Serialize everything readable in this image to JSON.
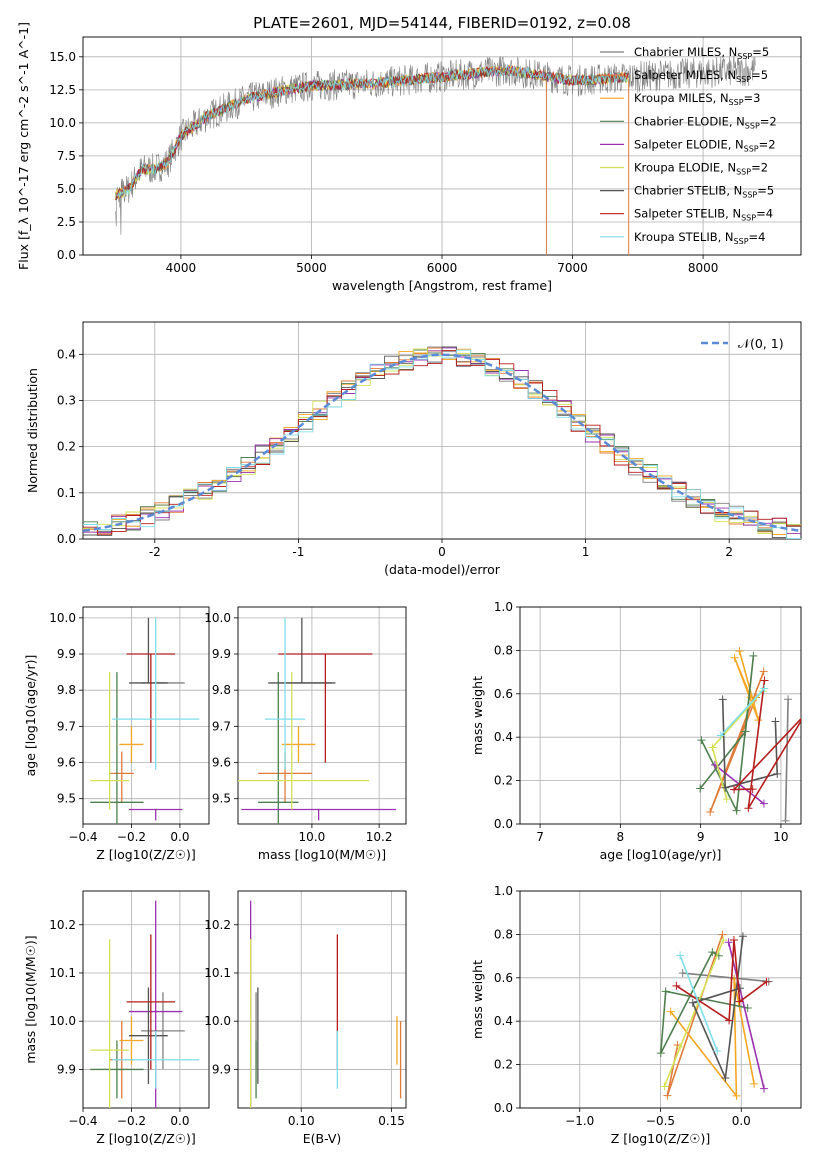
{
  "figure_title": "PLATE=2601, MJD=54144, FIBERID=0192, z=0.08",
  "colors": {
    "grid": "#b0b0b0",
    "axes": "#000000",
    "series": [
      "#808080",
      "#e07b39",
      "#f5a623",
      "#4f7f4f",
      "#9b30b0",
      "#d4e157",
      "#555555",
      "#b71c1c",
      "#80deea"
    ]
  },
  "series_names": [
    "Chabrier MILES, N$_{SSP}$=5",
    "Salpeter MILES, N$_{SSP}$=5",
    "Kroupa MILES, N$_{SSP}$=3",
    "Chabrier ELODIE, N$_{SSP}$=2",
    "Salpeter ELODIE, N$_{SSP}$=2",
    "Kroupa ELODIE, N$_{SSP}$=2",
    "Chabrier STELIB, N$_{SSP}$=5",
    "Salpeter STELIB, N$_{SSP}$=4",
    "Kroupa STELIB, N$_{SSP}$=4"
  ],
  "chart_data": [
    {
      "id": "spectrum",
      "type": "line",
      "xlabel": "wavelength [Angstrom, rest frame]",
      "ylabel": "Flux [f_λ 10^-17 erg cm^-2 s^-1 A^-1]",
      "xlim": [
        3250,
        8750
      ],
      "ylim": [
        0,
        16.5
      ],
      "xticks": [
        4000,
        5000,
        6000,
        7000,
        8000
      ],
      "yticks": [
        0.0,
        2.5,
        5.0,
        7.5,
        10.0,
        12.5,
        15.0
      ],
      "legend_position": "right",
      "continuum_anchors": {
        "x": [
          3500,
          3600,
          3700,
          3800,
          3900,
          4000,
          4200,
          4500,
          4800,
          5000,
          5500,
          6000,
          6500,
          7000,
          7500,
          8000,
          8400
        ],
        "y": [
          4.5,
          5.0,
          6.5,
          6.5,
          7.0,
          9.0,
          10.5,
          11.8,
          12.5,
          12.8,
          13.0,
          13.5,
          14.0,
          13.2,
          13.5,
          13.8,
          14.0
        ]
      },
      "model_wavelength_range": [
        3500,
        7430
      ],
      "notes": "observed spectrum gray; models overlay"
    },
    {
      "id": "residuals",
      "type": "histogram",
      "xlabel": "(data-model)/error",
      "ylabel": "Normed distribution",
      "xlim": [
        -2.5,
        2.5
      ],
      "ylim": [
        0,
        0.47
      ],
      "xticks": [
        -2,
        -1,
        0,
        1,
        2
      ],
      "yticks": [
        0.0,
        0.1,
        0.2,
        0.3,
        0.4
      ],
      "reference_curve": "N(0,1)",
      "reference_label": "𝒩(0, 1)",
      "legend_position": "upper right",
      "bin_width": 0.1
    },
    {
      "id": "age_vs_Z",
      "type": "scatter",
      "xlabel": "Z [log10(Z/Z☉)]",
      "ylabel": "age  [log10(age/yr)]",
      "xlim": [
        -0.4,
        0.12
      ],
      "ylim": [
        9.43,
        10.03
      ],
      "xticks": [
        -0.4,
        -0.2,
        0.0
      ],
      "xticklabels": [
        "−0.4",
        "−0.2",
        "0.0"
      ],
      "yticks": [
        9.5,
        9.6,
        9.7,
        9.8,
        9.9,
        10.0
      ]
    },
    {
      "id": "age_vs_mass",
      "type": "scatter",
      "xlabel": "mass [log10(M/M☉)]",
      "xlim": [
        9.78,
        10.28
      ],
      "ylim": [
        9.43,
        10.03
      ],
      "xticks": [
        10.0,
        10.2
      ],
      "xticklabels": [
        "10.0",
        "10.2"
      ],
      "yticks": [
        9.5,
        9.6,
        9.7,
        9.8,
        9.9,
        10.0
      ]
    },
    {
      "id": "weight_vs_age",
      "type": "line",
      "xlabel": "age  [log10(age/yr)]",
      "ylabel": "mass weight",
      "xlim": [
        6.75,
        10.25
      ],
      "ylim": [
        0,
        1
      ],
      "xticks": [
        7,
        8,
        9,
        10
      ],
      "yticks": [
        0.0,
        0.2,
        0.4,
        0.6,
        0.8,
        1.0
      ]
    },
    {
      "id": "mass_vs_Z",
      "type": "scatter",
      "xlabel": "Z [log10(Z/Z☉)]",
      "ylabel": "mass [log10(M/M☉)]",
      "xlim": [
        -0.4,
        0.12
      ],
      "ylim": [
        9.82,
        10.27
      ],
      "xticks": [
        -0.4,
        -0.2,
        0.0
      ],
      "xticklabels": [
        "−0.4",
        "−0.2",
        "0.0"
      ],
      "yticks": [
        9.9,
        10.0,
        10.1,
        10.2
      ]
    },
    {
      "id": "mass_vs_EBV",
      "type": "scatter",
      "xlabel": "E(B-V)",
      "xlim": [
        0.065,
        0.158
      ],
      "ylim": [
        9.82,
        10.27
      ],
      "xticks": [
        0.1,
        0.15
      ],
      "xticklabels": [
        "0.10",
        "0.15"
      ],
      "yticks": [
        9.9,
        10.0,
        10.1,
        10.2
      ]
    },
    {
      "id": "weight_vs_Z",
      "type": "line",
      "xlabel": "Z [log10(Z/Z☉)]",
      "ylabel": "mass weight",
      "xlim": [
        -1.37,
        0.37
      ],
      "ylim": [
        0,
        1
      ],
      "xticks": [
        -1.0,
        -0.5,
        0.0
      ],
      "xticklabels": [
        "−1.0",
        "−0.5",
        "0.0"
      ],
      "yticks": [
        0.0,
        0.2,
        0.4,
        0.6,
        0.8,
        1.0
      ]
    }
  ],
  "fit_results": [
    {
      "age": 9.82,
      "age_err": [
        0.0,
        0.0
      ],
      "Z": -0.07,
      "Z_err": 0.09,
      "mass": 9.98,
      "mass_err": 0.08,
      "ebv": 0.075
    },
    {
      "age": 9.57,
      "age_err": [
        0.08,
        0.06
      ],
      "Z": -0.24,
      "Z_err": 0.05,
      "mass": 9.92,
      "mass_err": 0.08,
      "ebv": 0.155
    },
    {
      "age": 9.65,
      "age_err": [
        0.05,
        0.05
      ],
      "Z": -0.2,
      "Z_err": 0.05,
      "mass": 9.96,
      "mass_err": 0.05,
      "ebv": 0.153
    },
    {
      "age": 9.49,
      "age_err": [
        0.06,
        0.36
      ],
      "Z": -0.26,
      "Z_err": 0.11,
      "mass": 9.9,
      "mass_err": 0.06,
      "ebv": 0.075
    },
    {
      "age": 9.47,
      "age_err": [
        0.03,
        0.0
      ],
      "Z": -0.1,
      "Z_err": 0.11,
      "mass": 10.02,
      "mass_err": 0.23,
      "ebv": 0.072
    },
    {
      "age": 9.55,
      "age_err": [
        0.08,
        0.3
      ],
      "Z": -0.29,
      "Z_err": 0.08,
      "mass": 9.94,
      "mass_err": 0.23,
      "ebv": 0.072
    },
    {
      "age": 9.82,
      "age_err": [
        0.0,
        0.18
      ],
      "Z": -0.13,
      "Z_err": 0.08,
      "mass": 9.97,
      "mass_err": 0.1,
      "ebv": 0.076
    },
    {
      "age": 9.9,
      "age_err": [
        0.3,
        0.0
      ],
      "Z": -0.12,
      "Z_err": 0.1,
      "mass": 10.04,
      "mass_err": 0.14,
      "ebv": 0.12
    },
    {
      "age": 9.72,
      "age_err": [
        0.14,
        0.28
      ],
      "Z": -0.1,
      "Z_err": 0.18,
      "mass": 9.92,
      "mass_err": 0.06,
      "ebv": 0.12
    }
  ]
}
